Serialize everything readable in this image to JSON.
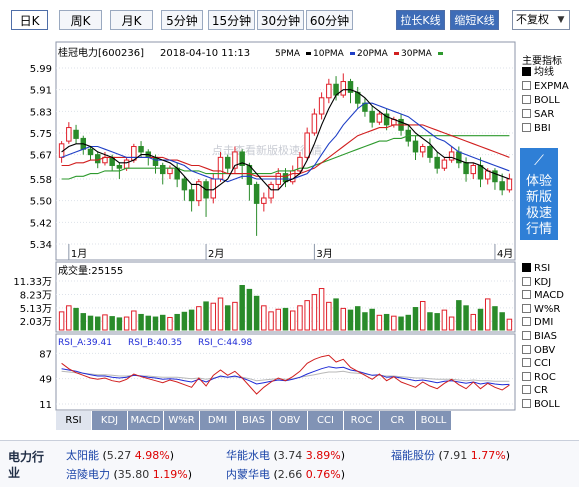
{
  "period_tabs": [
    "日K",
    "周K",
    "月K",
    "5分钟",
    "15分钟",
    "30分钟",
    "60分钟"
  ],
  "active_tab": 0,
  "buttons": {
    "stretch": "拉长K线",
    "shorten": "缩短K线"
  },
  "adjust": {
    "value": "不复权"
  },
  "header": {
    "stock": "桂冠电力[600236]",
    "datetime": "2018-04-10 11:13",
    "ma5": "5PMA",
    "ma10": "10PMA",
    "ma20": "20PMA",
    "ma30": "30PMA"
  },
  "colors": {
    "up": "#e0202a",
    "down": "#2a8b2a",
    "ma5": "#000000",
    "ma10": "#1f3fc6",
    "ma20": "#d11f1f",
    "ma30": "#2e9a2e"
  },
  "side": {
    "title": "主要指标",
    "options": [
      "均线",
      "EXPMA",
      "BOLL",
      "SAR",
      "BBI"
    ],
    "selected": 0
  },
  "promo": {
    "lines": [
      "体验",
      "新版",
      "极速",
      "行情"
    ]
  },
  "watermark": "点击查看新版极速行情",
  "volume": {
    "label": "成交量:25155",
    "yticks": [
      "11.33万",
      "8.23万",
      "5.13万",
      "2.03万"
    ]
  },
  "rsi": {
    "label_a": "RSI_A:39.41",
    "label_b": "RSI_B:40.35",
    "label_c": "RSI_C:44.98",
    "yticks": [
      "87",
      "49",
      "11"
    ]
  },
  "lower_side": {
    "options": [
      "RSI",
      "KDJ",
      "MACD",
      "W%R",
      "DMI",
      "BIAS",
      "OBV",
      "CCI",
      "ROC",
      "CR",
      "BOLL"
    ],
    "selected": 0
  },
  "bottom_tabs": [
    "RSI",
    "KDJ",
    "MACD",
    "W%R",
    "DMI",
    "BIAS",
    "OBV",
    "CCI",
    "ROC",
    "CR",
    "BOLL"
  ],
  "bottom_active": 0,
  "industry": {
    "label": "电力行业",
    "stocks": [
      {
        "name": "太阳能",
        "price": "5.27",
        "pct": "4.98%"
      },
      {
        "name": "华能水电",
        "price": "3.74",
        "pct": "3.89%"
      },
      {
        "name": "福能股份",
        "price": "7.91",
        "pct": "1.77%"
      },
      {
        "name": "涪陵电力",
        "price": "35.80",
        "pct": "1.19%"
      },
      {
        "name": "内蒙华电",
        "price": "2.66",
        "pct": "0.76%"
      }
    ]
  },
  "chart_data": {
    "type": "candlestick",
    "title": "桂冠电力[600236]",
    "ylim": [
      5.34,
      5.99
    ],
    "yticks": [
      5.99,
      5.91,
      5.83,
      5.75,
      5.67,
      5.58,
      5.5,
      5.42,
      5.34
    ],
    "xticks": [
      {
        "label": "1月",
        "index": 1
      },
      {
        "label": "2月",
        "index": 20
      },
      {
        "label": "3月",
        "index": 35
      },
      {
        "label": "4月",
        "index": 60
      }
    ],
    "candles": [
      [
        5.66,
        5.71,
        5.64,
        5.72
      ],
      [
        5.72,
        5.77,
        5.71,
        5.79
      ],
      [
        5.76,
        5.73,
        5.71,
        5.78
      ],
      [
        5.73,
        5.69,
        5.67,
        5.74
      ],
      [
        5.69,
        5.67,
        5.65,
        5.7
      ],
      [
        5.67,
        5.64,
        5.62,
        5.68
      ],
      [
        5.64,
        5.66,
        5.63,
        5.68
      ],
      [
        5.66,
        5.63,
        5.61,
        5.67
      ],
      [
        5.63,
        5.62,
        5.58,
        5.64
      ],
      [
        5.62,
        5.65,
        5.61,
        5.66
      ],
      [
        5.65,
        5.7,
        5.64,
        5.71
      ],
      [
        5.7,
        5.68,
        5.66,
        5.72
      ],
      [
        5.68,
        5.66,
        5.63,
        5.69
      ],
      [
        5.66,
        5.63,
        5.6,
        5.67
      ],
      [
        5.63,
        5.6,
        5.56,
        5.64
      ],
      [
        5.6,
        5.62,
        5.58,
        5.63
      ],
      [
        5.62,
        5.58,
        5.55,
        5.64
      ],
      [
        5.58,
        5.54,
        5.5,
        5.59
      ],
      [
        5.54,
        5.5,
        5.46,
        5.56
      ],
      [
        5.5,
        5.57,
        5.48,
        5.58
      ],
      [
        5.57,
        5.51,
        5.44,
        5.58
      ],
      [
        5.51,
        5.58,
        5.49,
        5.6
      ],
      [
        5.58,
        5.66,
        5.57,
        5.68
      ],
      [
        5.66,
        5.62,
        5.6,
        5.67
      ],
      [
        5.62,
        5.68,
        5.6,
        5.7
      ],
      [
        5.68,
        5.63,
        5.58,
        5.69
      ],
      [
        5.63,
        5.56,
        5.5,
        5.64
      ],
      [
        5.56,
        5.49,
        5.37,
        5.57
      ],
      [
        5.49,
        5.51,
        5.46,
        5.53
      ],
      [
        5.51,
        5.56,
        5.49,
        5.57
      ],
      [
        5.56,
        5.6,
        5.54,
        5.62
      ],
      [
        5.6,
        5.57,
        5.55,
        5.62
      ],
      [
        5.57,
        5.61,
        5.56,
        5.63
      ],
      [
        5.61,
        5.66,
        5.6,
        5.68
      ],
      [
        5.66,
        5.75,
        5.65,
        5.77
      ],
      [
        5.75,
        5.82,
        5.74,
        5.84
      ],
      [
        5.82,
        5.88,
        5.8,
        5.9
      ],
      [
        5.88,
        5.93,
        5.86,
        5.95
      ],
      [
        5.93,
        5.89,
        5.87,
        5.96
      ],
      [
        5.89,
        5.94,
        5.88,
        5.97
      ],
      [
        5.94,
        5.9,
        5.86,
        5.95
      ],
      [
        5.9,
        5.86,
        5.84,
        5.92
      ],
      [
        5.86,
        5.83,
        5.81,
        5.88
      ],
      [
        5.83,
        5.79,
        5.77,
        5.85
      ],
      [
        5.79,
        5.82,
        5.78,
        5.83
      ],
      [
        5.82,
        5.78,
        5.76,
        5.84
      ],
      [
        5.78,
        5.8,
        5.77,
        5.81
      ],
      [
        5.8,
        5.76,
        5.74,
        5.82
      ],
      [
        5.76,
        5.72,
        5.7,
        5.78
      ],
      [
        5.72,
        5.68,
        5.65,
        5.74
      ],
      [
        5.68,
        5.7,
        5.66,
        5.71
      ],
      [
        5.7,
        5.66,
        5.64,
        5.73
      ],
      [
        5.66,
        5.62,
        5.6,
        5.68
      ],
      [
        5.62,
        5.65,
        5.61,
        5.66
      ],
      [
        5.65,
        5.68,
        5.64,
        5.7
      ],
      [
        5.68,
        5.64,
        5.62,
        5.7
      ],
      [
        5.64,
        5.6,
        5.57,
        5.66
      ],
      [
        5.6,
        5.63,
        5.58,
        5.64
      ],
      [
        5.63,
        5.58,
        5.55,
        5.66
      ],
      [
        5.58,
        5.61,
        5.56,
        5.62
      ],
      [
        5.61,
        5.57,
        5.54,
        5.62
      ],
      [
        5.57,
        5.54,
        5.52,
        5.6
      ],
      [
        5.54,
        5.58,
        5.53,
        5.6
      ]
    ],
    "ma": {
      "ma5": [
        5.68,
        5.7,
        5.71,
        5.71,
        5.7,
        5.68,
        5.67,
        5.66,
        5.64,
        5.64,
        5.65,
        5.67,
        5.67,
        5.66,
        5.65,
        5.64,
        5.62,
        5.59,
        5.56,
        5.56,
        5.54,
        5.54,
        5.56,
        5.58,
        5.63,
        5.64,
        5.63,
        5.6,
        5.57,
        5.54,
        5.54,
        5.57,
        5.58,
        5.6,
        5.65,
        5.71,
        5.78,
        5.84,
        5.89,
        5.91,
        5.91,
        5.9,
        5.88,
        5.85,
        5.83,
        5.81,
        5.8,
        5.79,
        5.78,
        5.75,
        5.73,
        5.71,
        5.68,
        5.66,
        5.66,
        5.65,
        5.64,
        5.64,
        5.63,
        5.61,
        5.6,
        5.59,
        5.58
      ],
      "ma10": [
        5.66,
        5.67,
        5.68,
        5.69,
        5.7,
        5.7,
        5.69,
        5.68,
        5.67,
        5.66,
        5.66,
        5.66,
        5.66,
        5.65,
        5.65,
        5.65,
        5.64,
        5.63,
        5.61,
        5.6,
        5.59,
        5.58,
        5.58,
        5.57,
        5.58,
        5.59,
        5.59,
        5.58,
        5.58,
        5.58,
        5.58,
        5.58,
        5.58,
        5.59,
        5.6,
        5.63,
        5.67,
        5.71,
        5.74,
        5.78,
        5.81,
        5.84,
        5.86,
        5.86,
        5.85,
        5.84,
        5.83,
        5.82,
        5.81,
        5.79,
        5.77,
        5.75,
        5.73,
        5.72,
        5.7,
        5.68,
        5.67,
        5.66,
        5.65,
        5.64,
        5.63,
        5.62,
        5.61
      ],
      "ma20": [
        5.63,
        5.63,
        5.64,
        5.64,
        5.65,
        5.65,
        5.66,
        5.66,
        5.66,
        5.66,
        5.66,
        5.66,
        5.66,
        5.66,
        5.66,
        5.65,
        5.65,
        5.64,
        5.63,
        5.63,
        5.62,
        5.61,
        5.61,
        5.6,
        5.6,
        5.6,
        5.6,
        5.59,
        5.59,
        5.59,
        5.59,
        5.59,
        5.6,
        5.6,
        5.61,
        5.62,
        5.64,
        5.66,
        5.68,
        5.7,
        5.72,
        5.74,
        5.75,
        5.76,
        5.77,
        5.77,
        5.78,
        5.78,
        5.78,
        5.78,
        5.78,
        5.77,
        5.76,
        5.75,
        5.74,
        5.73,
        5.72,
        5.71,
        5.7,
        5.69,
        5.68,
        5.67,
        5.66
      ],
      "ma30": [
        5.58,
        5.58,
        5.59,
        5.59,
        5.6,
        5.6,
        5.61,
        5.61,
        5.61,
        5.62,
        5.62,
        5.62,
        5.62,
        5.62,
        5.62,
        5.62,
        5.62,
        5.61,
        5.61,
        5.61,
        5.6,
        5.6,
        5.6,
        5.6,
        5.6,
        5.6,
        5.6,
        5.6,
        5.6,
        5.6,
        5.61,
        5.61,
        5.61,
        5.62,
        5.62,
        5.63,
        5.64,
        5.65,
        5.66,
        5.67,
        5.68,
        5.69,
        5.7,
        5.71,
        5.72,
        5.72,
        5.73,
        5.73,
        5.74,
        5.74,
        5.74,
        5.74,
        5.74,
        5.74,
        5.74,
        5.74,
        5.74,
        5.74,
        5.74,
        5.74,
        5.74,
        5.74,
        5.74
      ]
    },
    "volume_wan": [
      4.2,
      5.6,
      5.0,
      3.8,
      3.2,
      3.0,
      3.5,
      3.1,
      2.8,
      3.0,
      4.4,
      3.6,
      3.2,
      3.0,
      3.4,
      2.9,
      3.6,
      4.1,
      4.6,
      5.4,
      6.5,
      6.2,
      7.4,
      5.6,
      6.4,
      10.3,
      9.4,
      7.8,
      5.6,
      4.2,
      4.8,
      5.0,
      4.4,
      5.6,
      6.8,
      8.2,
      9.6,
      6.4,
      7.2,
      5.0,
      4.6,
      5.4,
      4.0,
      4.8,
      3.4,
      3.6,
      3.2,
      3.0,
      3.4,
      5.2,
      6.6,
      4.0,
      3.8,
      4.6,
      3.0,
      6.8,
      5.6,
      3.6,
      4.8,
      7.2,
      5.4,
      4.0,
      2.5
    ],
    "rsi": {
      "rsi_a": [
        72,
        64,
        58,
        54,
        50,
        48,
        50,
        46,
        44,
        48,
        56,
        52,
        49,
        46,
        43,
        47,
        44,
        40,
        36,
        50,
        38,
        54,
        62,
        54,
        60,
        50,
        38,
        26,
        36,
        44,
        50,
        46,
        52,
        60,
        72,
        78,
        82,
        84,
        74,
        78,
        66,
        60,
        54,
        48,
        56,
        46,
        52,
        44,
        40,
        36,
        44,
        38,
        34,
        42,
        48,
        40,
        34,
        44,
        34,
        42,
        36,
        32,
        39.41
      ],
      "rsi_b": [
        64,
        62,
        60,
        57,
        55,
        53,
        53,
        51,
        50,
        51,
        54,
        53,
        51,
        50,
        48,
        49,
        48,
        46,
        44,
        48,
        44,
        49,
        53,
        51,
        53,
        50,
        46,
        41,
        43,
        45,
        47,
        46,
        48,
        51,
        56,
        60,
        64,
        67,
        65,
        66,
        62,
        60,
        57,
        54,
        55,
        51,
        52,
        50,
        48,
        46,
        47,
        45,
        43,
        45,
        46,
        44,
        42,
        44,
        41,
        43,
        41,
        40,
        40.35
      ],
      "rsi_c": [
        60,
        59,
        58,
        57,
        56,
        55,
        55,
        54,
        53,
        53,
        54,
        53,
        53,
        52,
        51,
        51,
        51,
        50,
        49,
        50,
        48,
        50,
        52,
        51,
        52,
        51,
        49,
        46,
        47,
        48,
        49,
        48,
        49,
        51,
        53,
        55,
        57,
        59,
        59,
        60,
        58,
        57,
        56,
        54,
        54,
        53,
        53,
        52,
        51,
        50,
        50,
        49,
        48,
        48,
        48,
        47,
        46,
        47,
        46,
        46,
        45,
        45,
        44.98
      ]
    }
  }
}
